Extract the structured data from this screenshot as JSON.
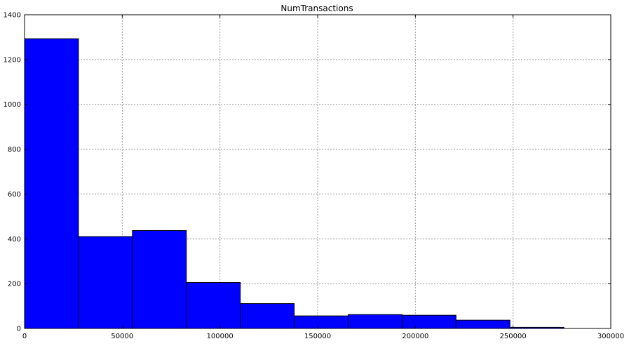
{
  "chart_data": {
    "type": "bar",
    "title": "NumTransactions",
    "xlabel": "",
    "ylabel": "",
    "xlim": [
      0,
      300000
    ],
    "ylim": [
      0,
      1400
    ],
    "xticks": [
      0,
      50000,
      100000,
      150000,
      200000,
      250000,
      300000
    ],
    "yticks": [
      0,
      200,
      400,
      600,
      800,
      1000,
      1200,
      1400
    ],
    "grid": true,
    "bins": [
      {
        "x0": 0,
        "x1": 27600,
        "value": 1293
      },
      {
        "x0": 27600,
        "x1": 55200,
        "value": 410
      },
      {
        "x0": 55200,
        "x1": 82800,
        "value": 437
      },
      {
        "x0": 82800,
        "x1": 110400,
        "value": 205
      },
      {
        "x0": 110400,
        "x1": 138000,
        "value": 111
      },
      {
        "x0": 138000,
        "x1": 165600,
        "value": 56
      },
      {
        "x0": 165600,
        "x1": 193200,
        "value": 62
      },
      {
        "x0": 193200,
        "x1": 220800,
        "value": 59
      },
      {
        "x0": 220800,
        "x1": 248400,
        "value": 37
      },
      {
        "x0": 248400,
        "x1": 276000,
        "value": 5
      }
    ],
    "bar_color": "#0000ff",
    "edge_color": "#000000",
    "grid_color": "#9a9a9a"
  }
}
